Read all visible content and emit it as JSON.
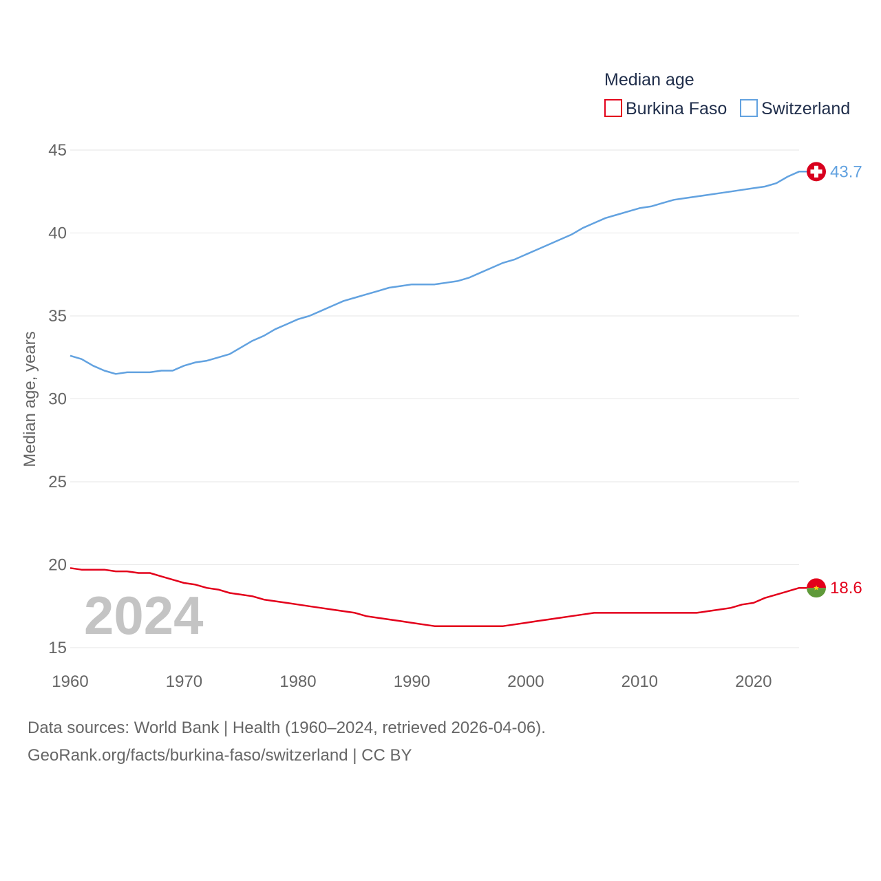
{
  "chart_data": {
    "type": "line",
    "legend_title": "Median age",
    "ylabel": "Median age, years",
    "ylim": [
      15,
      45
    ],
    "xlim": [
      1960,
      2024
    ],
    "yticks": [
      "15",
      "20",
      "25",
      "30",
      "35",
      "40",
      "45"
    ],
    "xticks": [
      "1960",
      "1970",
      "1980",
      "1990",
      "2000",
      "2010",
      "2020"
    ],
    "year_label": "2024",
    "x": [
      1960,
      1961,
      1962,
      1963,
      1964,
      1965,
      1966,
      1967,
      1968,
      1969,
      1970,
      1971,
      1972,
      1973,
      1974,
      1975,
      1976,
      1977,
      1978,
      1979,
      1980,
      1981,
      1982,
      1983,
      1984,
      1985,
      1986,
      1987,
      1988,
      1989,
      1990,
      1991,
      1992,
      1993,
      1994,
      1995,
      1996,
      1997,
      1998,
      1999,
      2000,
      2001,
      2002,
      2003,
      2004,
      2005,
      2006,
      2007,
      2008,
      2009,
      2010,
      2011,
      2012,
      2013,
      2014,
      2015,
      2016,
      2017,
      2018,
      2019,
      2020,
      2021,
      2022,
      2023,
      2024
    ],
    "series": [
      {
        "name": "Burkina Faso",
        "color": "#e3001b",
        "end_label": "18.6",
        "values": [
          19.8,
          19.7,
          19.7,
          19.7,
          19.6,
          19.6,
          19.5,
          19.5,
          19.3,
          19.1,
          18.9,
          18.8,
          18.6,
          18.5,
          18.3,
          18.2,
          18.1,
          17.9,
          17.8,
          17.7,
          17.6,
          17.5,
          17.4,
          17.3,
          17.2,
          17.1,
          16.9,
          16.8,
          16.7,
          16.6,
          16.5,
          16.4,
          16.3,
          16.3,
          16.3,
          16.3,
          16.3,
          16.3,
          16.3,
          16.4,
          16.5,
          16.6,
          16.7,
          16.8,
          16.9,
          17.0,
          17.1,
          17.1,
          17.1,
          17.1,
          17.1,
          17.1,
          17.1,
          17.1,
          17.1,
          17.1,
          17.2,
          17.3,
          17.4,
          17.6,
          17.7,
          18.0,
          18.2,
          18.4,
          18.6
        ]
      },
      {
        "name": "Switzerland",
        "color": "#62a2e0",
        "end_label": "43.7",
        "values": [
          32.6,
          32.4,
          32.0,
          31.7,
          31.5,
          31.6,
          31.6,
          31.6,
          31.7,
          31.7,
          32.0,
          32.2,
          32.3,
          32.5,
          32.7,
          33.1,
          33.5,
          33.8,
          34.2,
          34.5,
          34.8,
          35.0,
          35.3,
          35.6,
          35.9,
          36.1,
          36.3,
          36.5,
          36.7,
          36.8,
          36.9,
          36.9,
          36.9,
          37.0,
          37.1,
          37.3,
          37.6,
          37.9,
          38.2,
          38.4,
          38.7,
          39.0,
          39.3,
          39.6,
          39.9,
          40.3,
          40.6,
          40.9,
          41.1,
          41.3,
          41.5,
          41.6,
          41.8,
          42.0,
          42.1,
          42.2,
          42.3,
          42.4,
          42.5,
          42.6,
          42.7,
          42.8,
          43.0,
          43.4,
          43.7
        ]
      }
    ]
  },
  "footer": {
    "line1": "Data sources: World Bank | Health (1960–2024, retrieved 2026-04-06).",
    "line2": "GeoRank.org/facts/burkina-faso/switzerland | CC BY"
  },
  "icons": {
    "switzerland": "switzerland-flag-icon",
    "burkina_faso": "burkina-faso-flag-icon"
  }
}
